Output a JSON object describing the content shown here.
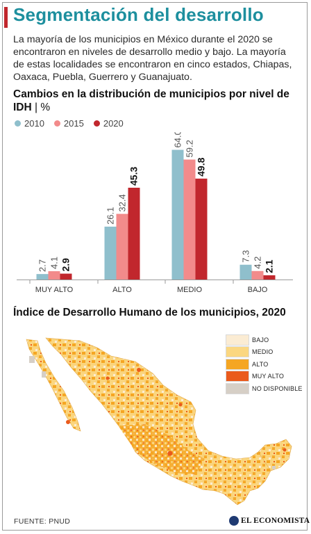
{
  "header": {
    "title": "Segmentación del desarrollo",
    "intro": "La mayoría de los municipios en México durante el 2020 se encontraron en niveles de desarrollo medio y bajo. La mayoría de estas localidades se encontraron en cinco estados, Chiapas, Oaxaca, Puebla, Guerrero y Guanajuato."
  },
  "bar_section": {
    "title_main": "Cambios en la distribución de municipios por nivel de IDH",
    "title_sep": " | ",
    "title_unit": "%"
  },
  "map_section": {
    "title": "Índice de Desarrollo Humano de los municipios, 2020",
    "legend": [
      {
        "label": "BAJO",
        "color": "#fbecd3"
      },
      {
        "label": "MEDIO",
        "color": "#fbd780"
      },
      {
        "label": "ALTO",
        "color": "#f5a623"
      },
      {
        "label": "MUY ALTO",
        "color": "#ea5a1c"
      },
      {
        "label": "NO DISPONIBLE",
        "color": "#d6cfc6"
      }
    ]
  },
  "footer": {
    "source": "FUENTE: PNUD",
    "brand": "EL ECONOMISTA"
  },
  "colors": {
    "title": "#1d8f9e",
    "accent": "#c1272d",
    "s2010": "#8fbfcc",
    "s2015": "#f28b8b",
    "s2020": "#c1272d"
  },
  "chart_data": {
    "type": "bar",
    "categories": [
      "MUY ALTO",
      "ALTO",
      "MEDIO",
      "BAJO"
    ],
    "series": [
      {
        "name": "2010",
        "color": "#8fbfcc",
        "values": [
          2.7,
          26.1,
          64.0,
          7.3
        ],
        "labels": [
          "2.7",
          "26.1",
          "64.0",
          "7.3"
        ]
      },
      {
        "name": "2015",
        "color": "#f28b8b",
        "values": [
          4.1,
          32.4,
          59.2,
          4.2
        ],
        "labels": [
          "4.1",
          "32.4",
          "59.2",
          "4.2"
        ]
      },
      {
        "name": "2020",
        "color": "#c1272d",
        "values": [
          2.9,
          45.3,
          49.8,
          2.1
        ],
        "labels": [
          "2.9",
          "45.3",
          "49.8",
          "2.1"
        ]
      }
    ],
    "ylim": [
      0,
      70
    ],
    "grid": false,
    "legend_position": "top-left"
  }
}
